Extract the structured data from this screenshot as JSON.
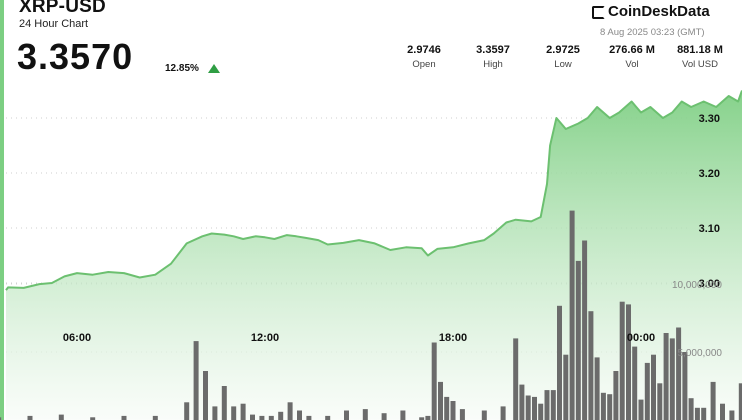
{
  "header": {
    "symbol": "XRP-USD",
    "subtitle": "24 Hour Chart",
    "price": "3.3570",
    "change": "12.85%",
    "brand": "CoinDeskData",
    "timestamp": "8 Aug 2025 03:23 (GMT)"
  },
  "stats": [
    {
      "value": "2.9746",
      "label": "Open"
    },
    {
      "value": "3.3597",
      "label": "High"
    },
    {
      "value": "2.9725",
      "label": "Low"
    },
    {
      "value": "276.66 M",
      "label": "Vol"
    },
    {
      "value": "881.18 M",
      "label": "Vol USD"
    }
  ],
  "colors": {
    "line": "#6cc070",
    "area_top": "#7fcf84",
    "area_bottom": "#f6fbf6",
    "bars": "#6b6b6b",
    "up": "#2f9e44"
  },
  "chart_data": {
    "type": "area",
    "title": "",
    "xlabel": "",
    "ylabel": "",
    "x_ticks": [
      "06:00",
      "12:00",
      "18:00",
      "00:00"
    ],
    "y_ticks": [
      3.0,
      3.1,
      3.2,
      3.3
    ],
    "y_tick_labels": [
      "3.00",
      "3.10",
      "3.20",
      "3.30"
    ],
    "volume_ticks": [
      5000000,
      10000000
    ],
    "volume_tick_labels": [
      "5,000,000",
      "10,000,000"
    ],
    "grid": "horizontal dotted",
    "price_series": {
      "name": "",
      "x_hours": [
        3.4,
        3.8,
        4.3,
        4.8,
        5.2,
        5.6,
        6.0,
        6.5,
        7.0,
        7.5,
        8.0,
        8.5,
        9.0,
        9.5,
        10.0,
        10.3,
        10.7,
        11.0,
        11.3,
        11.7,
        12.0,
        12.3,
        12.7,
        13.0,
        13.3,
        13.7,
        14.0,
        14.5,
        15.0,
        15.5,
        16.0,
        16.5,
        17.0,
        17.2,
        17.5,
        18.0,
        18.5,
        19.0,
        19.3,
        19.7,
        20.0,
        20.5,
        20.8,
        21.0,
        21.1,
        21.3,
        21.6,
        22.0,
        22.3,
        22.6,
        23.0,
        23.3,
        23.7,
        24.0,
        24.3,
        24.7,
        25.0,
        25.3,
        25.6,
        26.0,
        26.4,
        26.8,
        27.1,
        27.4
      ],
      "prices": [
        2.987,
        2.992,
        2.991,
        2.998,
        3.0,
        3.012,
        3.018,
        3.015,
        3.02,
        3.018,
        3.01,
        3.015,
        3.035,
        3.072,
        3.085,
        3.09,
        3.088,
        3.085,
        3.08,
        3.085,
        3.083,
        3.08,
        3.087,
        3.085,
        3.082,
        3.078,
        3.07,
        3.073,
        3.078,
        3.072,
        3.06,
        3.065,
        3.063,
        3.05,
        3.062,
        3.065,
        3.072,
        3.078,
        3.09,
        3.11,
        3.115,
        3.112,
        3.12,
        3.18,
        3.25,
        3.3,
        3.28,
        3.29,
        3.3,
        3.32,
        3.3,
        3.31,
        3.33,
        3.31,
        3.32,
        3.3,
        3.31,
        3.33,
        3.32,
        3.33,
        3.32,
        3.34,
        3.33,
        3.35
      ]
    },
    "volume_series": {
      "name": "",
      "x_hours": [
        3.5,
        4.5,
        5.5,
        6.5,
        7.5,
        8.5,
        9.5,
        9.8,
        10.1,
        10.4,
        10.7,
        11.0,
        11.3,
        11.6,
        11.9,
        12.2,
        12.5,
        12.8,
        13.1,
        13.4,
        14.0,
        14.6,
        15.2,
        15.8,
        16.4,
        17.0,
        17.2,
        17.4,
        17.6,
        17.8,
        18.0,
        18.3,
        19.0,
        19.6,
        20.0,
        20.2,
        20.4,
        20.6,
        20.8,
        21.0,
        21.2,
        21.4,
        21.6,
        21.8,
        22.0,
        22.2,
        22.4,
        22.6,
        22.8,
        23.0,
        23.2,
        23.4,
        23.6,
        23.8,
        24.0,
        24.2,
        24.4,
        24.6,
        24.8,
        25.0,
        25.2,
        25.4,
        25.6,
        25.8,
        26.0,
        26.3,
        26.6,
        26.9,
        27.2,
        27.4
      ],
      "volume": [
        200000,
        300000,
        400000,
        200000,
        300000,
        300000,
        1300000,
        5800000,
        3600000,
        1000000,
        2500000,
        1000000,
        1200000,
        400000,
        300000,
        300000,
        600000,
        1300000,
        700000,
        300000,
        300000,
        700000,
        800000,
        500000,
        700000,
        200000,
        300000,
        5700000,
        2800000,
        1700000,
        1400000,
        800000,
        700000,
        1000000,
        6000000,
        2600000,
        1800000,
        1700000,
        1200000,
        2200000,
        2200000,
        8400000,
        4800000,
        15400000,
        11700000,
        13200000,
        8000000,
        4600000,
        2000000,
        1900000,
        3600000,
        8700000,
        8500000,
        5400000,
        1500000,
        4200000,
        4800000,
        2700000,
        6400000,
        6000000,
        6800000,
        5000000,
        1600000,
        900000,
        900000,
        2800000,
        1200000,
        700000,
        2700000,
        3600000
      ]
    }
  }
}
